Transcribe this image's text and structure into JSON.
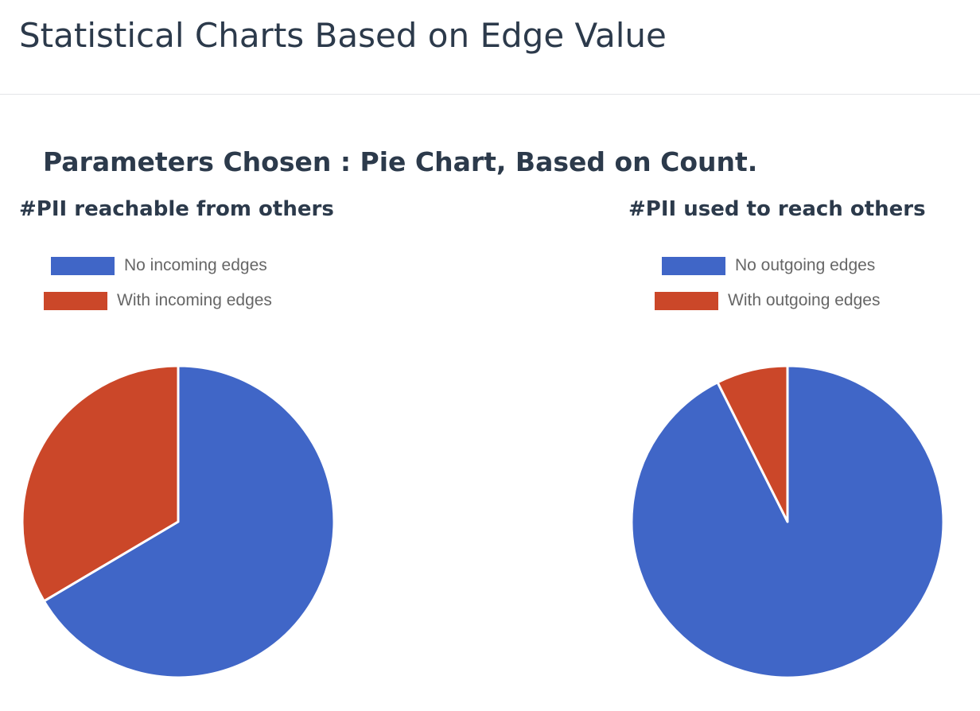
{
  "page": {
    "title": "Statistical Charts Based on Edge Value",
    "params": "Parameters Chosen : Pie Chart, Based on Count."
  },
  "colors": {
    "blue": "#4066c7",
    "red": "#cb4729"
  },
  "chart_data": [
    {
      "type": "pie",
      "title": "#PII reachable from others",
      "legend_position": "top-left",
      "slices": [
        {
          "label": "No incoming edges",
          "value": 66.5,
          "color": "#4066c7"
        },
        {
          "label": "With incoming edges",
          "value": 33.5,
          "color": "#cb4729"
        }
      ]
    },
    {
      "type": "pie",
      "title": "#PII used to reach others",
      "legend_position": "top-left",
      "slices": [
        {
          "label": "No outgoing edges",
          "value": 92.6,
          "color": "#4066c7"
        },
        {
          "label": "With outgoing edges",
          "value": 7.4,
          "color": "#cb4729"
        }
      ]
    }
  ]
}
